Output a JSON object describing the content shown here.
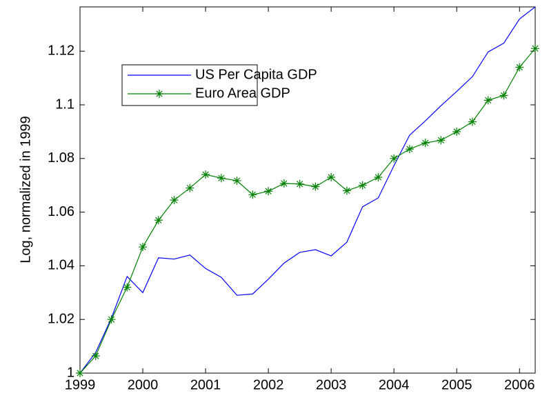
{
  "chart_data": {
    "type": "line",
    "ylabel": "Log, normalized in 1999",
    "x": [
      1999,
      1999.25,
      1999.5,
      1999.75,
      2000,
      2000.25,
      2000.5,
      2000.75,
      2001,
      2001.25,
      2001.5,
      2001.75,
      2002,
      2002.25,
      2002.5,
      2002.75,
      2003,
      2003.25,
      2003.5,
      2003.75,
      2004,
      2004.25,
      2004.5,
      2004.75,
      2005,
      2005.25,
      2005.5,
      2005.75,
      2006,
      2006.25
    ],
    "series": [
      {
        "name": "US Per Capita GDP",
        "color": "#0000ff",
        "marker": "none",
        "values": [
          1.0,
          1.0077,
          1.0205,
          1.036,
          1.03,
          1.043,
          1.0425,
          1.044,
          1.039,
          1.0357,
          1.029,
          1.0295,
          1.035,
          1.041,
          1.045,
          1.046,
          1.0437,
          1.0488,
          1.062,
          1.0653,
          1.0773,
          1.0887,
          1.094,
          1.0997,
          1.105,
          1.1105,
          1.1197,
          1.123,
          1.132,
          1.1365
        ]
      },
      {
        "name": "Euro Area GDP",
        "color": "#008000",
        "marker": "asterisk",
        "values": [
          1.0,
          1.0064,
          1.02,
          1.032,
          1.047,
          1.057,
          1.0645,
          1.069,
          1.074,
          1.0727,
          1.0717,
          1.0665,
          1.0678,
          1.0707,
          1.0705,
          1.0695,
          1.073,
          1.068,
          1.07,
          1.073,
          1.08,
          1.0835,
          1.0858,
          1.0868,
          1.09,
          1.0937,
          1.1017,
          1.1035,
          1.114,
          1.121
        ]
      }
    ],
    "xlim": [
      1999,
      2006.25
    ],
    "xticks": [
      1999,
      2000,
      2001,
      2002,
      2003,
      2004,
      2005,
      2006
    ],
    "ylim": [
      1,
      1.1365
    ],
    "yticks": [
      1,
      1.02,
      1.04,
      1.06,
      1.08,
      1.1,
      1.12
    ],
    "grid": false
  }
}
